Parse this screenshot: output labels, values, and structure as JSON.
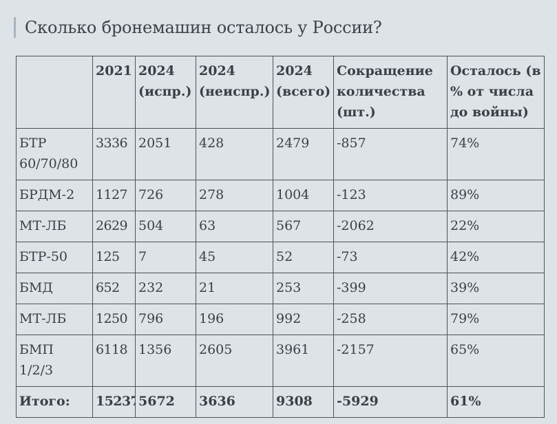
{
  "title": "Сколько бронемашин осталось у России?",
  "table": {
    "headers": [
      "",
      "2021",
      "2024 (испр.)",
      "2024 (неиспр.)",
      "2024 (всего)",
      "Сокращение количества (шт.)",
      "Осталось (в % от числа до войны)"
    ],
    "rows": [
      [
        "БТР 60/70/80",
        "3336",
        "2051",
        "428",
        "2479",
        "-857",
        "74%"
      ],
      [
        "БРДМ-2",
        "1127",
        "726",
        "278",
        "1004",
        "-123",
        "89%"
      ],
      [
        "МТ-ЛБ",
        "2629",
        "504",
        "63",
        "567",
        "-2062",
        "22%"
      ],
      [
        "БТР-50",
        "125",
        "7",
        "45",
        "52",
        "-73",
        "42%"
      ],
      [
        "БМД",
        "652",
        "232",
        "21",
        "253",
        "-399",
        "39%"
      ],
      [
        "МТ-ЛБ",
        "1250",
        "796",
        "196",
        "992",
        "-258",
        "79%"
      ],
      [
        "БМП 1/2/3",
        "6118",
        "1356",
        "2605",
        "3961",
        "-2157",
        "65%"
      ]
    ],
    "total": [
      "Итого:",
      "15237",
      "5672",
      "3636",
      "9308",
      "-5929",
      "61%"
    ]
  },
  "colors": {
    "background": "#dde3e7",
    "text": "#3a4047",
    "border": "#4b525a",
    "title_accent": "#a7b4bd"
  }
}
